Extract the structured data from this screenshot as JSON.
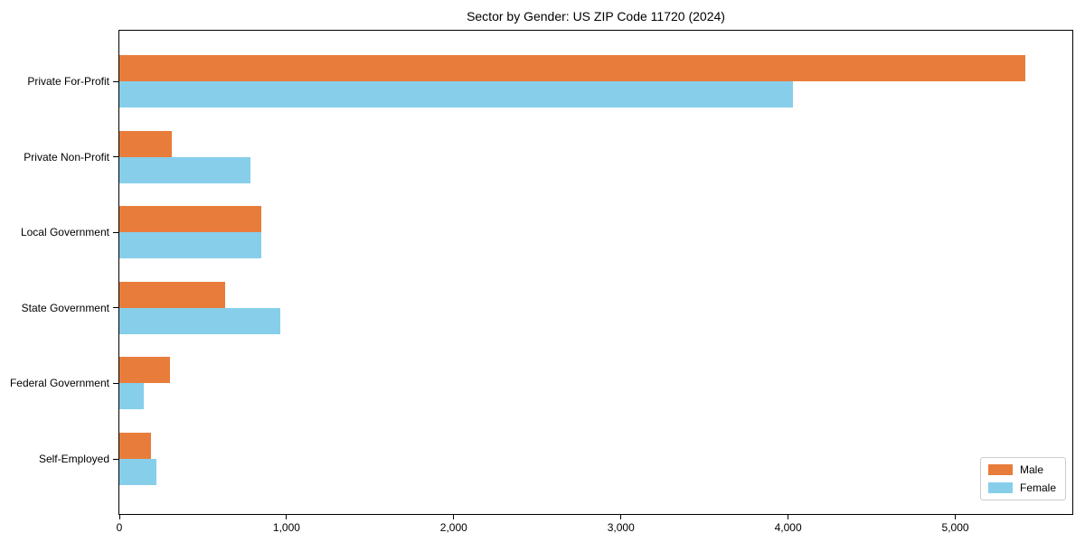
{
  "figure": {
    "background": "#ffffff",
    "text_color": "#000000",
    "spine_color": "#000000",
    "legend_border_color": "#cccccc"
  },
  "chart_data": {
    "type": "bar",
    "orientation": "horizontal",
    "title": "Sector by Gender: US ZIP Code 11720 (2024)",
    "categories": [
      "Private For-Profit",
      "Private Non-Profit",
      "Local Government",
      "State Government",
      "Federal Government",
      "Self-Employed"
    ],
    "series": [
      {
        "name": "Male",
        "color": "#e87d3b",
        "values": [
          5420,
          315,
          850,
          635,
          300,
          190
        ]
      },
      {
        "name": "Female",
        "color": "#87ceeb",
        "values": [
          4030,
          785,
          850,
          960,
          145,
          220
        ]
      }
    ],
    "xlabel": "",
    "ylabel": "",
    "xlim": [
      0,
      5700
    ],
    "x_ticks": [
      0,
      1000,
      2000,
      3000,
      4000,
      5000
    ],
    "x_tick_labels": [
      "0",
      "1,000",
      "2,000",
      "3,000",
      "4,000",
      "5,000"
    ],
    "grid": false,
    "legend": {
      "position": "lower right",
      "entries": [
        "Male",
        "Female"
      ]
    }
  }
}
